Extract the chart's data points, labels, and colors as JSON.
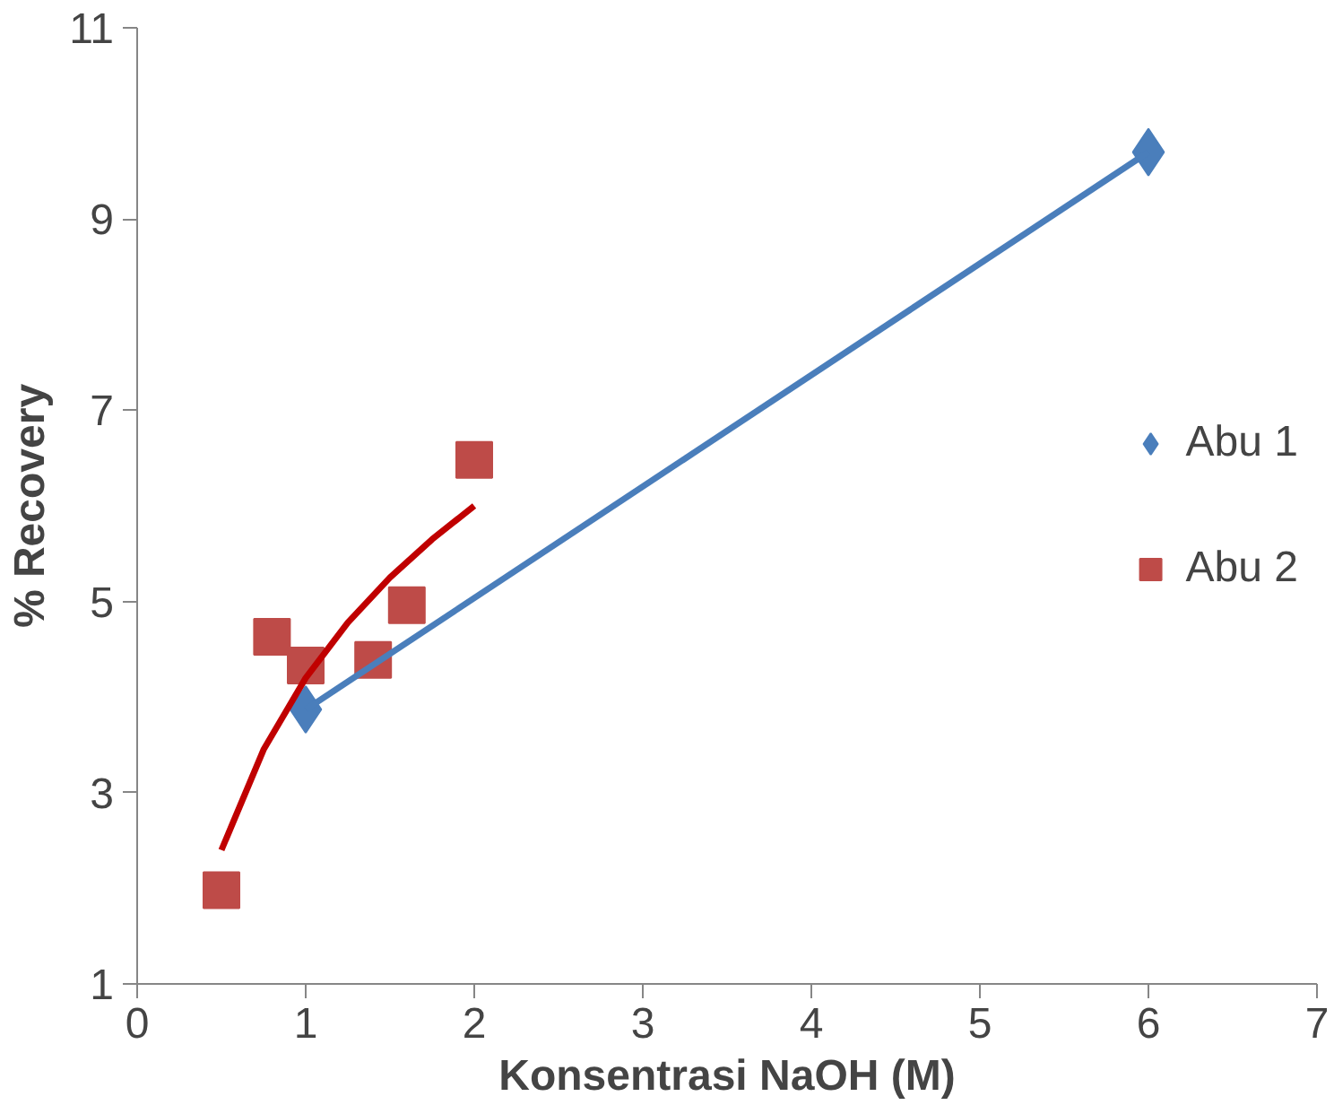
{
  "chart_data": {
    "type": "scatter",
    "xlabel": "Konsentrasi NaOH (M)",
    "ylabel": "% Recovery",
    "xlim": [
      0,
      7
    ],
    "ylim": [
      1,
      11
    ],
    "xticks": [
      0,
      1,
      2,
      3,
      4,
      5,
      6,
      7
    ],
    "yticks": [
      1,
      3,
      5,
      7,
      9,
      11
    ],
    "grid": false,
    "legend": "right",
    "series": [
      {
        "name": "Abu 1",
        "color": "#4a7ebb",
        "marker": "diamond",
        "x": [
          1,
          6
        ],
        "values": [
          3.87,
          9.7
        ]
      },
      {
        "name": "Abu 2",
        "color": "#be4b48",
        "marker": "square",
        "x": [
          0.5,
          0.8,
          1.0,
          1.4,
          1.6,
          2.0
        ],
        "values": [
          1.98,
          4.63,
          4.33,
          4.39,
          4.96,
          6.48
        ]
      },
      {
        "type": "line",
        "color": "#4a7ebb",
        "x": [
          1,
          6
        ],
        "values": [
          3.87,
          9.7
        ]
      },
      {
        "type": "line",
        "color": "#c00000",
        "x": [
          0.5,
          0.75,
          1.0,
          1.25,
          1.5,
          1.75,
          2.0
        ],
        "values": [
          2.4,
          3.45,
          4.2,
          4.78,
          5.25,
          5.65,
          6.0
        ]
      }
    ]
  }
}
